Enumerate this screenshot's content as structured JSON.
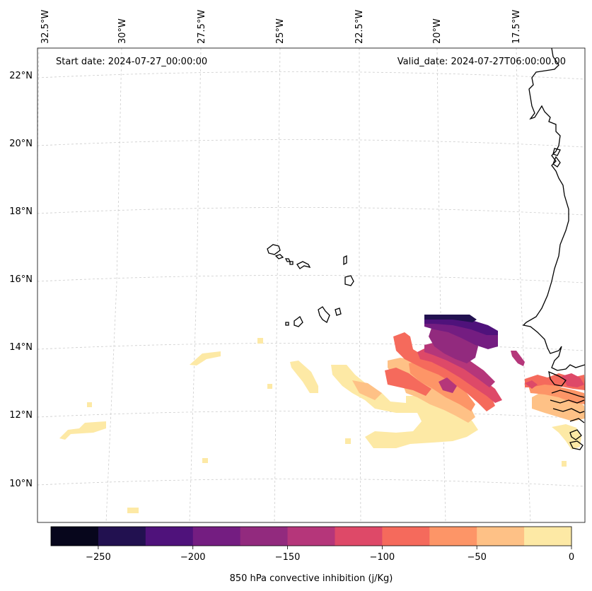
{
  "annotations": {
    "start": "Start date: 2024-07-27_00:00:00",
    "valid": "Valid_date: 2024-07-27T06:00:00.00"
  },
  "lon_labels": [
    "32.5°W",
    "30°W",
    "27.5°W",
    "25°W",
    "22.5°W",
    "20°W",
    "17.5°W"
  ],
  "lat_labels": [
    "22°N",
    "20°N",
    "18°N",
    "16°N",
    "14°N",
    "12°N",
    "10°N"
  ],
  "colorbar": {
    "label": "850 hPa convective inhibition (j/Kg)",
    "ticks": [
      "−250",
      "−200",
      "−150",
      "−100",
      "−50",
      "0"
    ],
    "tick_values": [
      -250,
      -200,
      -150,
      -100,
      -50,
      0
    ],
    "range": [
      -275,
      0
    ],
    "bounds": [
      -275,
      -250,
      -225,
      -200,
      -175,
      -150,
      -125,
      -100,
      -75,
      -50,
      -25,
      0
    ],
    "colors": [
      "#07061c",
      "#221150",
      "#4f127b",
      "#741d81",
      "#922a7e",
      "#b5367a",
      "#de4968",
      "#f56a5c",
      "#fd9567",
      "#fec186",
      "#fde9a5"
    ]
  },
  "map": {
    "projection": "lambert-conic",
    "colormap": "magma",
    "gridlines": "dashed light grey",
    "lon_extent": [
      "32.5°W",
      "15.5°W"
    ],
    "lat_extent": [
      "9°N",
      "22.8°N"
    ]
  }
}
